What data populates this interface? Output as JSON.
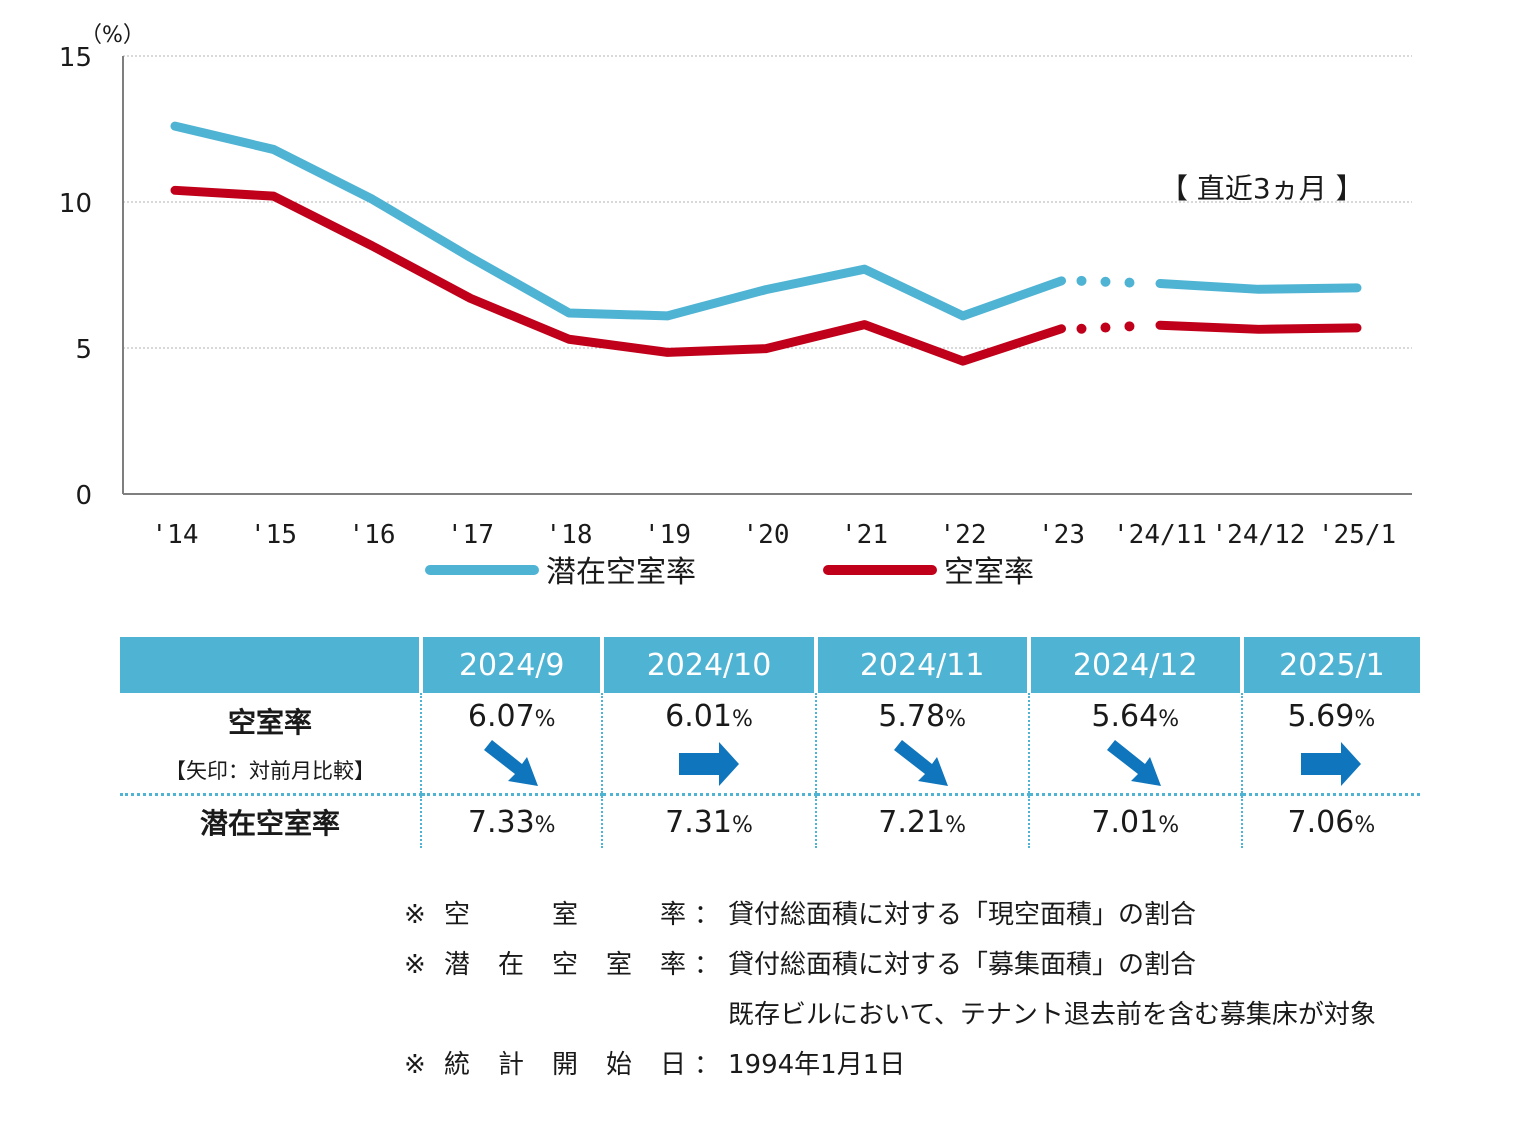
{
  "chart_data": {
    "type": "line",
    "categories": [
      "'14",
      "'15",
      "'16",
      "'17",
      "'18",
      "'19",
      "'20",
      "'21",
      "'22",
      "'23",
      "'24/11",
      "'24/12",
      "'25/1"
    ],
    "yunit": "（%）",
    "ylim": [
      0,
      15
    ],
    "yticks": [
      "0",
      "5",
      "10",
      "15"
    ],
    "grid": true,
    "annotation": "【 直近3ヵ月 】",
    "series": [
      {
        "name": "潜在空室率",
        "color": "#4fb3d4",
        "values": [
          12.6,
          11.8,
          10.1,
          8.1,
          6.2,
          6.1,
          7.0,
          7.7,
          6.1,
          7.3,
          7.21,
          7.01,
          7.06
        ]
      },
      {
        "name": "空室率",
        "color": "#c0001a",
        "values": [
          10.4,
          10.2,
          8.5,
          6.7,
          5.3,
          4.85,
          4.98,
          5.8,
          4.55,
          5.66,
          5.78,
          5.64,
          5.69
        ]
      }
    ],
    "gap_after_index": 9
  },
  "table": {
    "headers": [
      "2024/9",
      "2024/10",
      "2024/11",
      "2024/12",
      "2025/1"
    ],
    "rate_label": "空室率",
    "rate_sub": "【矢印：対前月比較】",
    "pot_label": "潜在空室率",
    "pct": "%",
    "rates": [
      "6.07",
      "6.01",
      "5.78",
      "5.64",
      "5.69"
    ],
    "arrows": [
      "down",
      "flat",
      "down",
      "down",
      "flat"
    ],
    "potentials": [
      "7.33",
      "7.31",
      "7.21",
      "7.01",
      "7.06"
    ],
    "arrow_color": "#0f75bc"
  },
  "notes": {
    "mark": "※",
    "lines": [
      {
        "label": [
          "空",
          "室",
          "率"
        ],
        "colon": "：",
        "text": "貸付総面積に対する「現空面積」の割合"
      },
      {
        "label": [
          "潜",
          "在",
          "空",
          "室",
          "率"
        ],
        "colon": "：",
        "text": "貸付総面積に対する「募集面積」の割合"
      },
      {
        "label": [],
        "colon": "",
        "text": "既存ビルにおいて、テナント退去前を含む募集床が対象"
      },
      {
        "label": [
          "統",
          "計",
          "開",
          "始",
          "日"
        ],
        "colon": "：",
        "text": "1994年1月1日"
      }
    ]
  }
}
